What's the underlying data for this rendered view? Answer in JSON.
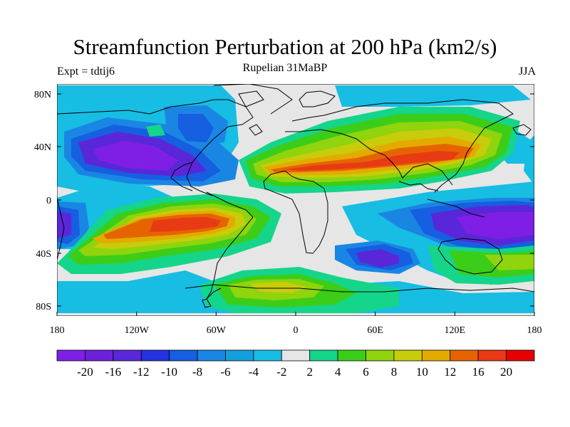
{
  "header": {
    "title": "Streamfunction Perturbation at 200 hPa (km2/s)",
    "subtitle": "Rupelian  31MaBP",
    "left_label": "Expt = tdtij6",
    "right_label": "JJA"
  },
  "axes": {
    "lat_ticks": [
      "80N",
      "40N",
      "0",
      "40S",
      "80S"
    ],
    "lon_ticks": [
      "180",
      "120W",
      "60W",
      "0",
      "60E",
      "120E",
      "180"
    ]
  },
  "colorbar": {
    "labels": [
      "-20",
      "-16",
      "-12",
      "-10",
      "-8",
      "-6",
      "-4",
      "-2",
      "2",
      "4",
      "6",
      "8",
      "10",
      "12",
      "16",
      "20"
    ],
    "colors": [
      "#7f1fe6",
      "#6b21d9",
      "#5a27d8",
      "#2431e0",
      "#155fe0",
      "#1a86e3",
      "#14a0db",
      "#17bde3",
      "#e6e6e6",
      "#14d58a",
      "#3ccd19",
      "#8fd40d",
      "#c8cc0a",
      "#e3ab00",
      "#e66400",
      "#e83a14",
      "#e60000"
    ]
  },
  "fields": {
    "background_color": "#e6e6e6",
    "coast_color": "#000000"
  }
}
